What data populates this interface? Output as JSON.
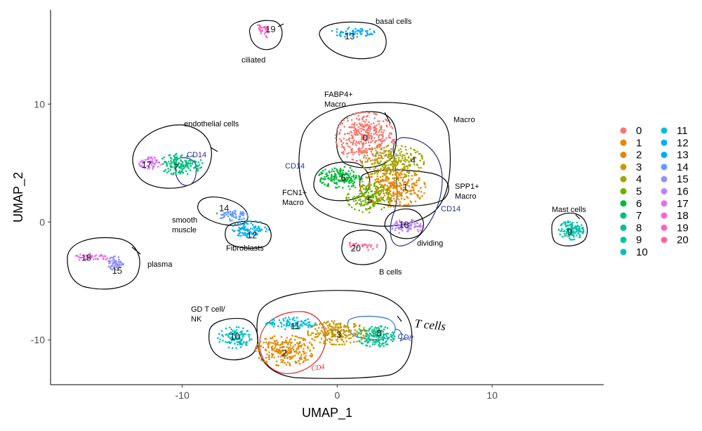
{
  "chart_data": {
    "type": "scatter",
    "title": "",
    "xlabel": "UMAP_1",
    "ylabel": "UMAP_2",
    "xlim": [
      -18.5,
      17.2
    ],
    "ylim": [
      -13.8,
      18.0
    ],
    "xticks": [
      -10,
      0,
      10
    ],
    "yticks": [
      -10,
      0,
      10
    ],
    "grid": false,
    "legend_position": "right",
    "clusters": [
      {
        "name": "0",
        "color": "#F8766D",
        "cx": 1.8,
        "cy": 7.2,
        "rx": 1.9,
        "ry": 2.1,
        "n": 380,
        "label": [
          1.8,
          7.2
        ]
      },
      {
        "name": "1",
        "color": "#E58700",
        "cx": 3.6,
        "cy": 2.9,
        "rx": 2.1,
        "ry": 1.6,
        "n": 330,
        "label": [
          4.4,
          3.0
        ]
      },
      {
        "name": "2",
        "color": "#E08B00",
        "cx": -3.4,
        "cy": -10.9,
        "rx": 1.9,
        "ry": 1.3,
        "n": 260,
        "label": [
          -3.4,
          -11.1
        ]
      },
      {
        "name": "3",
        "color": "#C99800",
        "cx": 0.0,
        "cy": -9.4,
        "rx": 1.9,
        "ry": 1.0,
        "n": 240,
        "label": [
          0.1,
          -9.5
        ]
      },
      {
        "name": "4",
        "color": "#A3A500",
        "cx": 3.6,
        "cy": 5.1,
        "rx": 2.0,
        "ry": 1.4,
        "n": 240,
        "label": [
          4.9,
          5.3
        ]
      },
      {
        "name": "5",
        "color": "#6BB100",
        "cx": 2.0,
        "cy": 2.1,
        "rx": 1.4,
        "ry": 1.3,
        "n": 170,
        "label": [
          2.1,
          1.9
        ]
      },
      {
        "name": "6",
        "color": "#00BA38",
        "cx": 0.2,
        "cy": 3.8,
        "rx": 1.4,
        "ry": 0.9,
        "n": 160,
        "label": [
          0.4,
          3.8
        ]
      },
      {
        "name": "7",
        "color": "#00BF7D",
        "cx": -10.1,
        "cy": 4.9,
        "rx": 1.4,
        "ry": 0.9,
        "n": 150,
        "label": [
          -10.4,
          4.7
        ]
      },
      {
        "name": "8",
        "color": "#00C08B",
        "cx": 2.5,
        "cy": -9.7,
        "rx": 1.2,
        "ry": 0.9,
        "n": 150,
        "label": [
          2.7,
          -9.4
        ]
      },
      {
        "name": "9",
        "color": "#00C1AA",
        "cx": 15.1,
        "cy": -0.7,
        "rx": 0.8,
        "ry": 0.8,
        "n": 120,
        "label": [
          15.0,
          -0.8
        ]
      },
      {
        "name": "10",
        "color": "#00BFC4",
        "cx": -6.6,
        "cy": -9.8,
        "rx": 1.1,
        "ry": 0.9,
        "n": 110,
        "label": [
          -6.6,
          -9.7
        ]
      },
      {
        "name": "11",
        "color": "#00BCD8",
        "cx": -3.0,
        "cy": -8.6,
        "rx": 1.6,
        "ry": 0.5,
        "n": 100,
        "label": [
          -2.7,
          -8.8
        ]
      },
      {
        "name": "12",
        "color": "#00B0F6",
        "cx": -5.6,
        "cy": -0.6,
        "rx": 1.2,
        "ry": 0.7,
        "n": 100,
        "label": [
          -5.5,
          -1.1
        ]
      },
      {
        "name": "13",
        "color": "#00A9FF",
        "cx": 1.0,
        "cy": 16.1,
        "rx": 1.4,
        "ry": 0.4,
        "n": 60,
        "label": [
          0.8,
          15.8
        ]
      },
      {
        "name": "14",
        "color": "#619CFF",
        "cx": -6.8,
        "cy": 0.6,
        "rx": 1.0,
        "ry": 0.5,
        "n": 60,
        "label": [
          -7.3,
          1.2
        ]
      },
      {
        "name": "15",
        "color": "#9590FF",
        "cx": -14.3,
        "cy": -3.5,
        "rx": 0.5,
        "ry": 0.6,
        "n": 70,
        "label": [
          -14.2,
          -4.1
        ]
      },
      {
        "name": "16",
        "color": "#B983FF",
        "cx": 4.5,
        "cy": -0.4,
        "rx": 1.0,
        "ry": 0.6,
        "n": 80,
        "label": [
          4.3,
          -0.2
        ]
      },
      {
        "name": "17",
        "color": "#DB72FB",
        "cx": -12.0,
        "cy": 5.0,
        "rx": 0.8,
        "ry": 0.5,
        "n": 60,
        "label": [
          -12.3,
          4.9
        ]
      },
      {
        "name": "18",
        "color": "#F166E9",
        "cx": -15.8,
        "cy": -3.0,
        "rx": 1.2,
        "ry": 0.3,
        "n": 45,
        "label": [
          -16.2,
          -3.0
        ]
      },
      {
        "name": "19",
        "color": "#FF61C3",
        "cx": -4.8,
        "cy": 16.2,
        "rx": 0.6,
        "ry": 0.6,
        "n": 30,
        "label": [
          -4.3,
          16.4
        ]
      },
      {
        "name": "20",
        "color": "#FF6A98",
        "cx": 1.6,
        "cy": -2.0,
        "rx": 1.0,
        "ry": 0.4,
        "n": 30,
        "label": [
          1.2,
          -2.2
        ]
      }
    ],
    "legend_entries": [
      "0",
      "1",
      "2",
      "3",
      "4",
      "5",
      "6",
      "7",
      "8",
      "9",
      "10",
      "11",
      "12",
      "13",
      "14",
      "15",
      "16",
      "17",
      "18",
      "19",
      "20"
    ],
    "annotations": {
      "basal": "basal cells",
      "ciliated": "ciliated",
      "fabp4_line1": "FABP4+",
      "fabp4_line2": "Macro",
      "macro": "Macro",
      "endothelial": "endothelial cells",
      "cd14_a": "CD14",
      "cd14_b": "CD14",
      "cd14_c": "CD14",
      "fcn1_line1": "FCN1+",
      "fcn1_line2": "Macro",
      "spp1_line1": "SPP1+",
      "spp1_line2": "Macro",
      "mast": "Mast cells",
      "smooth_line1": "smooth",
      "smooth_line2": "muscle",
      "fibroblasts": "Fibroblasts",
      "dividing": "dividing",
      "plasma": "plasma",
      "bcells": "B cells",
      "gd_line1": "GD T cell/",
      "gd_line2": "NK",
      "tcells": "T cells",
      "cd4": "CD4",
      "cd8": "CD8"
    }
  }
}
